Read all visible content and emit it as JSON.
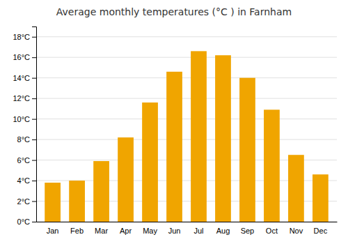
{
  "chart_data": {
    "type": "bar",
    "title": "Average monthly temperatures (°C ) in Farnham",
    "categories": [
      "Jan",
      "Feb",
      "Mar",
      "Apr",
      "May",
      "Jun",
      "Jul",
      "Aug",
      "Sep",
      "Oct",
      "Nov",
      "Dec"
    ],
    "values": [
      3.8,
      4.0,
      5.9,
      8.2,
      11.6,
      14.6,
      16.6,
      16.2,
      14.0,
      10.9,
      6.5,
      4.6
    ],
    "color": "#F0A500",
    "ylim": [
      0,
      19
    ],
    "yticks": [
      {
        "value": 0,
        "label": "0°C"
      },
      {
        "value": 2,
        "label": "2°C"
      },
      {
        "value": 4,
        "label": "4°C"
      },
      {
        "value": 6,
        "label": "6°C"
      },
      {
        "value": 8,
        "label": "8°C"
      },
      {
        "value": 10,
        "label": "10°C"
      },
      {
        "value": 12,
        "label": "12°C"
      },
      {
        "value": 14,
        "label": "14°C"
      },
      {
        "value": 16,
        "label": "16°C"
      },
      {
        "value": 18,
        "label": "18°C"
      }
    ],
    "grid": true
  }
}
